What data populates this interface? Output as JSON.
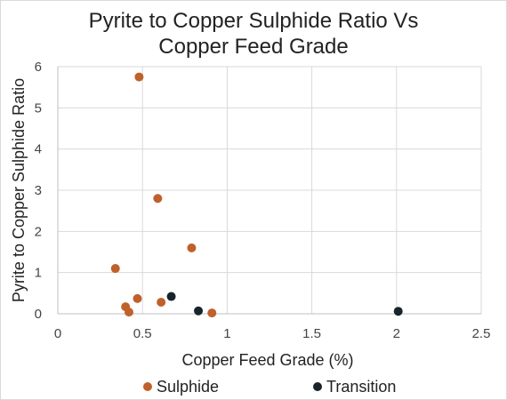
{
  "chart_data": {
    "type": "scatter",
    "title": [
      "Pyrite to Copper Sulphide Ratio Vs",
      "Copper Feed Grade"
    ],
    "xlabel": "Copper Feed Grade (%)",
    "ylabel": "Pyrite to Copper Sulphide  Ratio",
    "xlim": [
      0,
      2.5
    ],
    "ylim": [
      0,
      6
    ],
    "xticks": [
      0,
      0.5,
      1,
      1.5,
      2,
      2.5
    ],
    "xtick_labels": [
      "0",
      "0.5",
      "1",
      "1.5",
      "2",
      "2.5"
    ],
    "yticks": [
      0,
      1,
      2,
      3,
      4,
      5,
      6
    ],
    "ytick_labels": [
      "0",
      "1",
      "2",
      "3",
      "4",
      "5",
      "6"
    ],
    "grid": true,
    "legend_position": "bottom",
    "series": [
      {
        "name": "Sulphide",
        "color": "#c0602b",
        "points": [
          {
            "x": 0.48,
            "y": 5.75
          },
          {
            "x": 0.59,
            "y": 2.8
          },
          {
            "x": 0.79,
            "y": 1.6
          },
          {
            "x": 0.34,
            "y": 1.1
          },
          {
            "x": 0.47,
            "y": 0.37
          },
          {
            "x": 0.4,
            "y": 0.17
          },
          {
            "x": 0.42,
            "y": 0.04
          },
          {
            "x": 0.61,
            "y": 0.28
          },
          {
            "x": 0.91,
            "y": 0.02
          }
        ]
      },
      {
        "name": "Transition",
        "color": "#17242c",
        "points": [
          {
            "x": 0.67,
            "y": 0.42
          },
          {
            "x": 0.83,
            "y": 0.07
          },
          {
            "x": 2.01,
            "y": 0.06
          }
        ]
      }
    ]
  }
}
